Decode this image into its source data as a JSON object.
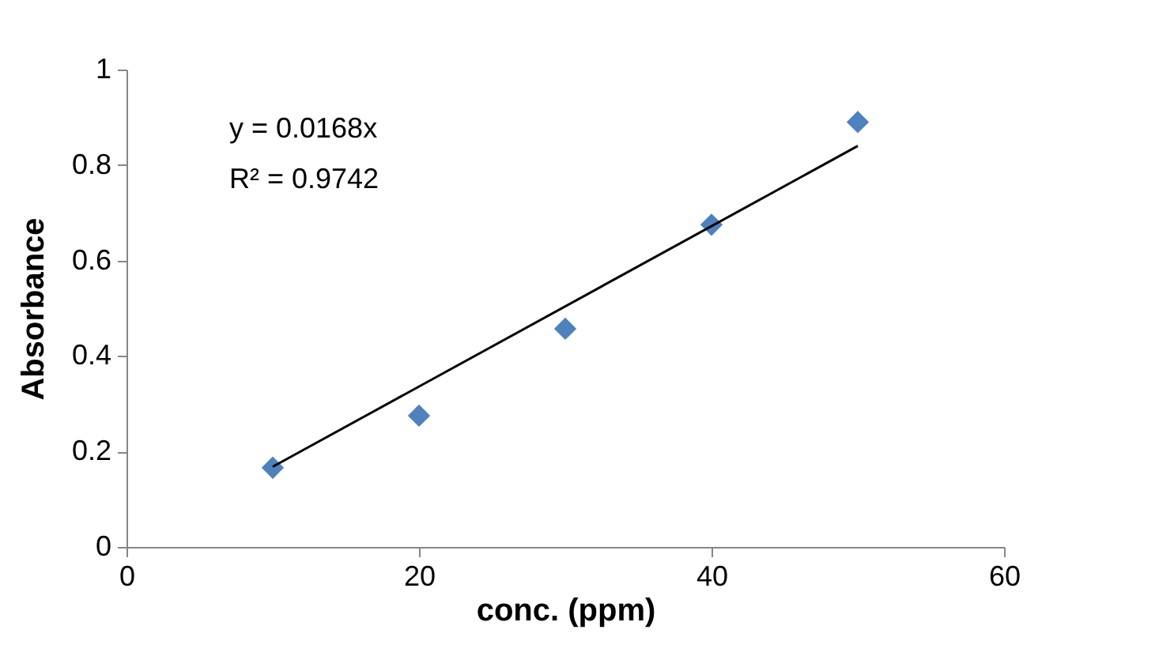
{
  "chart_data": {
    "type": "scatter",
    "xlabel": "conc. (ppm)",
    "ylabel": "Absorbance",
    "x": [
      10,
      20,
      30,
      40,
      50
    ],
    "series": [
      {
        "color": "#4f81bd",
        "marker": "diamond",
        "values": [
          0.166,
          0.275,
          0.457,
          0.675,
          0.89
        ]
      },
      {
        "type": "line",
        "color": "#000000",
        "marker": "none",
        "line_style": "solid",
        "x": [
          10,
          50
        ],
        "values": [
          0.168,
          0.84
        ]
      }
    ],
    "annotations": [
      "y = 0.0168x",
      "R² = 0.9742"
    ],
    "xlim": [
      0,
      60
    ],
    "xticks": [
      0,
      20,
      40,
      60
    ],
    "ylim": [
      0,
      1
    ],
    "yticks": [
      0,
      0.2,
      0.4,
      0.6,
      0.8,
      1
    ],
    "grid": false
  }
}
